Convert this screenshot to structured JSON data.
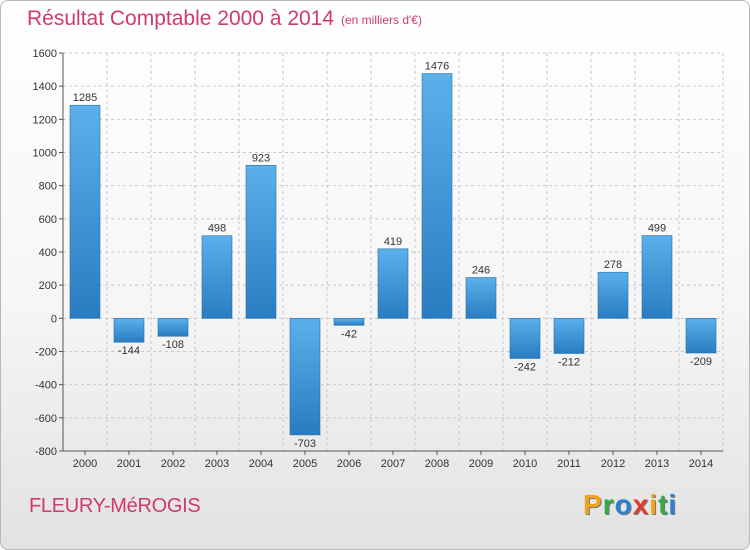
{
  "chart_data": {
    "type": "bar",
    "title": "Résultat Comptable 2000 à 2014",
    "unit_label": "(en milliers d'€)",
    "categories": [
      "2000",
      "2001",
      "2002",
      "2003",
      "2004",
      "2005",
      "2006",
      "2007",
      "2008",
      "2009",
      "2010",
      "2011",
      "2012",
      "2013",
      "2014"
    ],
    "values": [
      1285,
      -144,
      -108,
      498,
      923,
      -703,
      -42,
      419,
      1476,
      246,
      -242,
      -212,
      278,
      499,
      -209
    ],
    "yticks": [
      -800,
      -600,
      -400,
      -200,
      0,
      200,
      400,
      600,
      800,
      1000,
      1200,
      1400,
      1600
    ],
    "ylim": [
      -800,
      1600
    ],
    "xlabel": "",
    "ylabel": "",
    "grid": true,
    "bar_color_top": "#5cb0ea",
    "bar_color_bottom": "#2a7cc0"
  },
  "footer": {
    "commune": "FLEURY-MéROGIS",
    "brand": "Proxiti",
    "brand_letters": [
      "P",
      "r",
      "o",
      "x",
      "i",
      "t",
      "i"
    ],
    "brand_colors": [
      "#f0a21a",
      "#38a84a",
      "#2f7fd1",
      "#e23b2f",
      "#f0a21a",
      "#38a84a",
      "#2f7fd1"
    ]
  }
}
